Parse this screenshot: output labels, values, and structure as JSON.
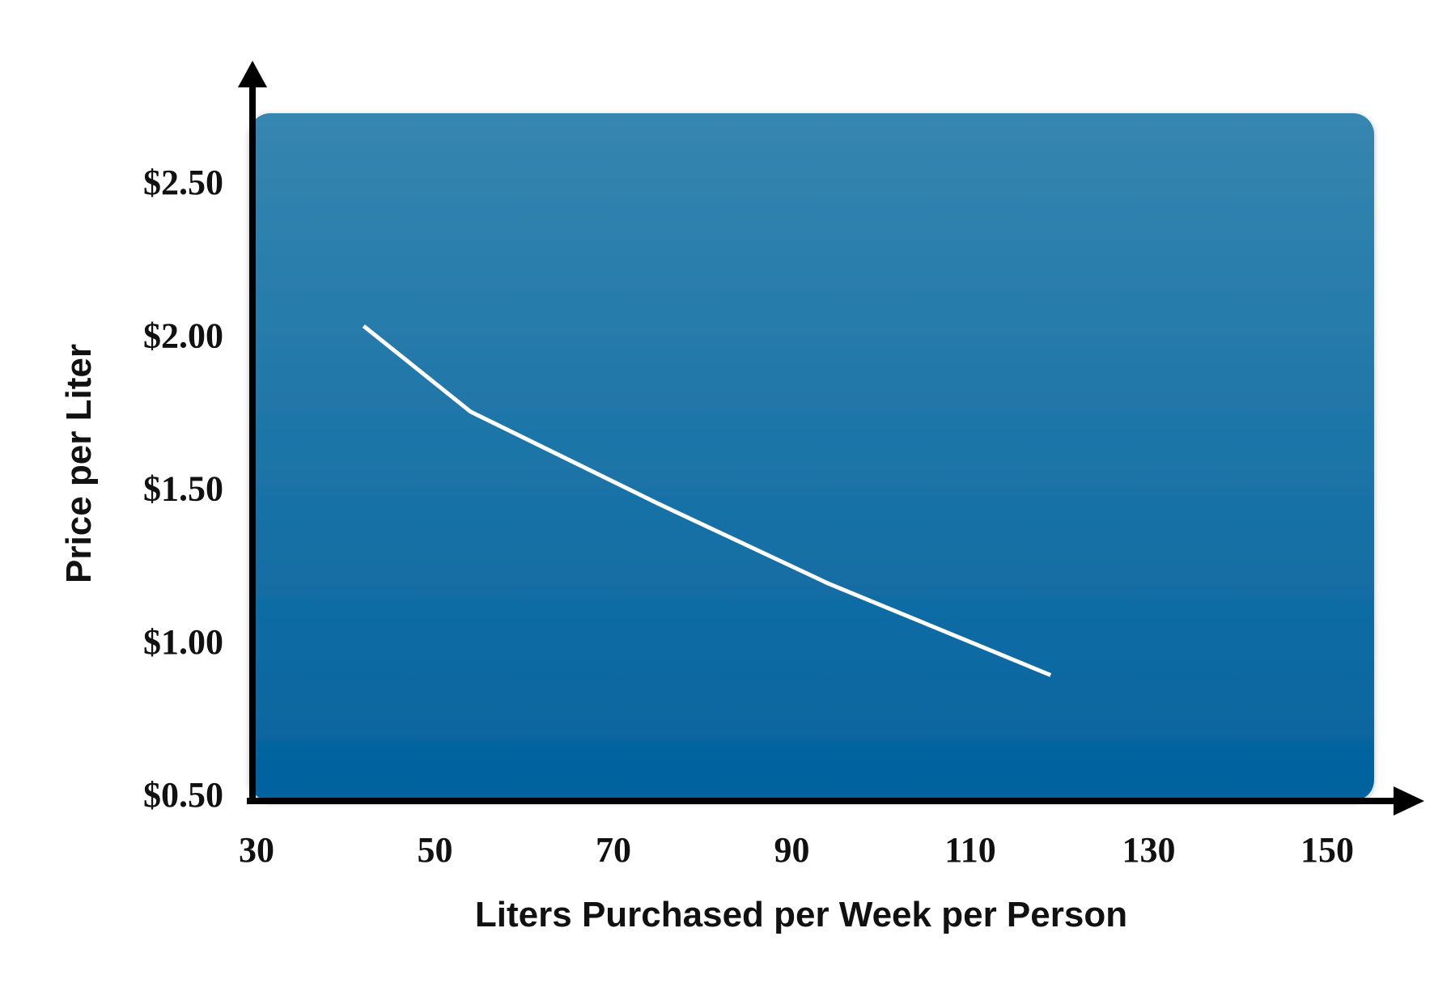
{
  "chart_data": {
    "type": "line",
    "title": "",
    "xlabel": "Liters Purchased per Week per Person",
    "ylabel": "Price per Liter",
    "xlim": [
      30,
      150
    ],
    "ylim": [
      0.5,
      2.75
    ],
    "x_ticks": [
      "30",
      "50",
      "70",
      "90",
      "110",
      "130",
      "150"
    ],
    "y_ticks": [
      "$0.50",
      "$1.00",
      "$1.50",
      "$2.00",
      "$2.50"
    ],
    "x_tick_values": [
      30,
      50,
      70,
      90,
      110,
      130,
      150
    ],
    "y_tick_values": [
      0.5,
      1.0,
      1.5,
      2.0,
      2.5
    ],
    "series": [
      {
        "x": [
          42,
          54,
          75,
          94,
          119
        ],
        "y": [
          2.03,
          1.75,
          1.45,
          1.19,
          0.89
        ]
      }
    ],
    "grid": false,
    "legend": "none",
    "colors": {
      "plot_bg_top": "#3686b0",
      "plot_bg_bottom": "#02629e",
      "line": "#ffffff",
      "axis": "#000000",
      "text": "#111111"
    }
  }
}
